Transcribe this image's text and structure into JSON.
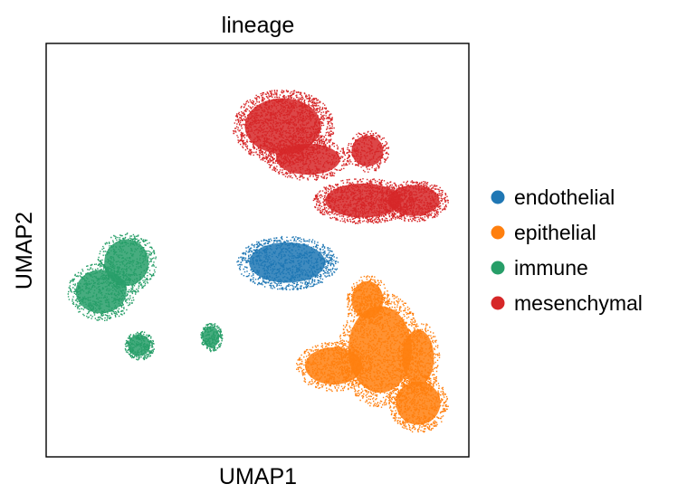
{
  "chart_data": {
    "type": "scatter",
    "title": "lineage",
    "xlabel": "UMAP1",
    "ylabel": "UMAP2",
    "xlim": [
      0,
      100
    ],
    "ylim": [
      0,
      100
    ],
    "grid": false,
    "ticks": false,
    "legend_position": "right",
    "series": [
      {
        "name": "endothelial",
        "color": "#1f77b4",
        "clusters": [
          {
            "cx": 57,
            "cy": 47,
            "rx": 12,
            "ry": 6.5,
            "n": 1100
          }
        ]
      },
      {
        "name": "epithelial",
        "color": "#ff7f0e",
        "clusters": [
          {
            "cx": 79,
            "cy": 26,
            "rx": 10,
            "ry": 14,
            "n": 1500
          },
          {
            "cx": 68,
            "cy": 22,
            "rx": 9,
            "ry": 6,
            "n": 700
          },
          {
            "cx": 88,
            "cy": 13,
            "rx": 7,
            "ry": 7,
            "n": 700
          },
          {
            "cx": 76,
            "cy": 38,
            "rx": 5,
            "ry": 6,
            "n": 400
          },
          {
            "cx": 88,
            "cy": 24,
            "rx": 5,
            "ry": 9,
            "n": 400
          }
        ]
      },
      {
        "name": "immune",
        "color": "#279e68",
        "clusters": [
          {
            "cx": 13,
            "cy": 40,
            "rx": 8,
            "ry": 7,
            "n": 700
          },
          {
            "cx": 19,
            "cy": 47,
            "rx": 7,
            "ry": 7.5,
            "n": 600
          },
          {
            "cx": 22,
            "cy": 27,
            "rx": 3.5,
            "ry": 3.5,
            "n": 300
          },
          {
            "cx": 39,
            "cy": 29,
            "rx": 2.6,
            "ry": 3.5,
            "n": 250
          }
        ]
      },
      {
        "name": "mesenchymal",
        "color": "#d62728",
        "clusters": [
          {
            "cx": 56,
            "cy": 80,
            "rx": 12,
            "ry": 9,
            "n": 1900
          },
          {
            "cx": 62,
            "cy": 72,
            "rx": 10,
            "ry": 5,
            "n": 600
          },
          {
            "cx": 75,
            "cy": 62,
            "rx": 12,
            "ry": 5.5,
            "n": 1200
          },
          {
            "cx": 87,
            "cy": 62,
            "rx": 8,
            "ry": 5,
            "n": 700
          },
          {
            "cx": 76,
            "cy": 74,
            "rx": 5,
            "ry": 5,
            "n": 300
          }
        ]
      }
    ]
  }
}
